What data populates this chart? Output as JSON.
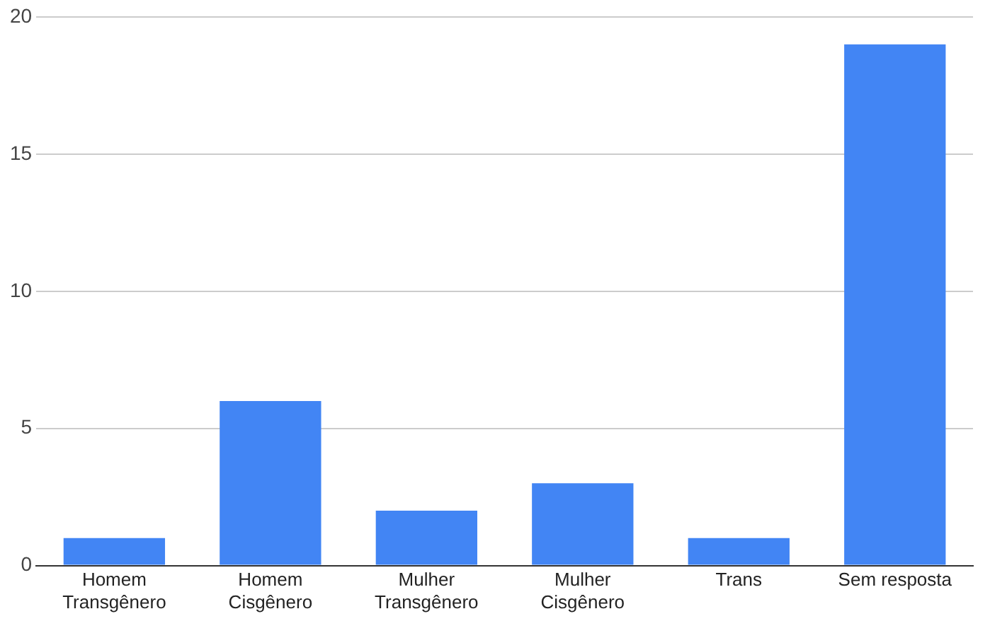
{
  "chart_data": {
    "type": "bar",
    "categories": [
      "Homem Transgênero",
      "Homem Cisgênero",
      "Mulher Transgênero",
      "Mulher Cisgênero",
      "Trans",
      "Sem resposta"
    ],
    "values": [
      1,
      6,
      2,
      3,
      1,
      19
    ],
    "color": "#4285f4",
    "ylim": [
      0,
      20
    ],
    "yticks": [
      0,
      5,
      10,
      15,
      20
    ],
    "grid": "y"
  }
}
